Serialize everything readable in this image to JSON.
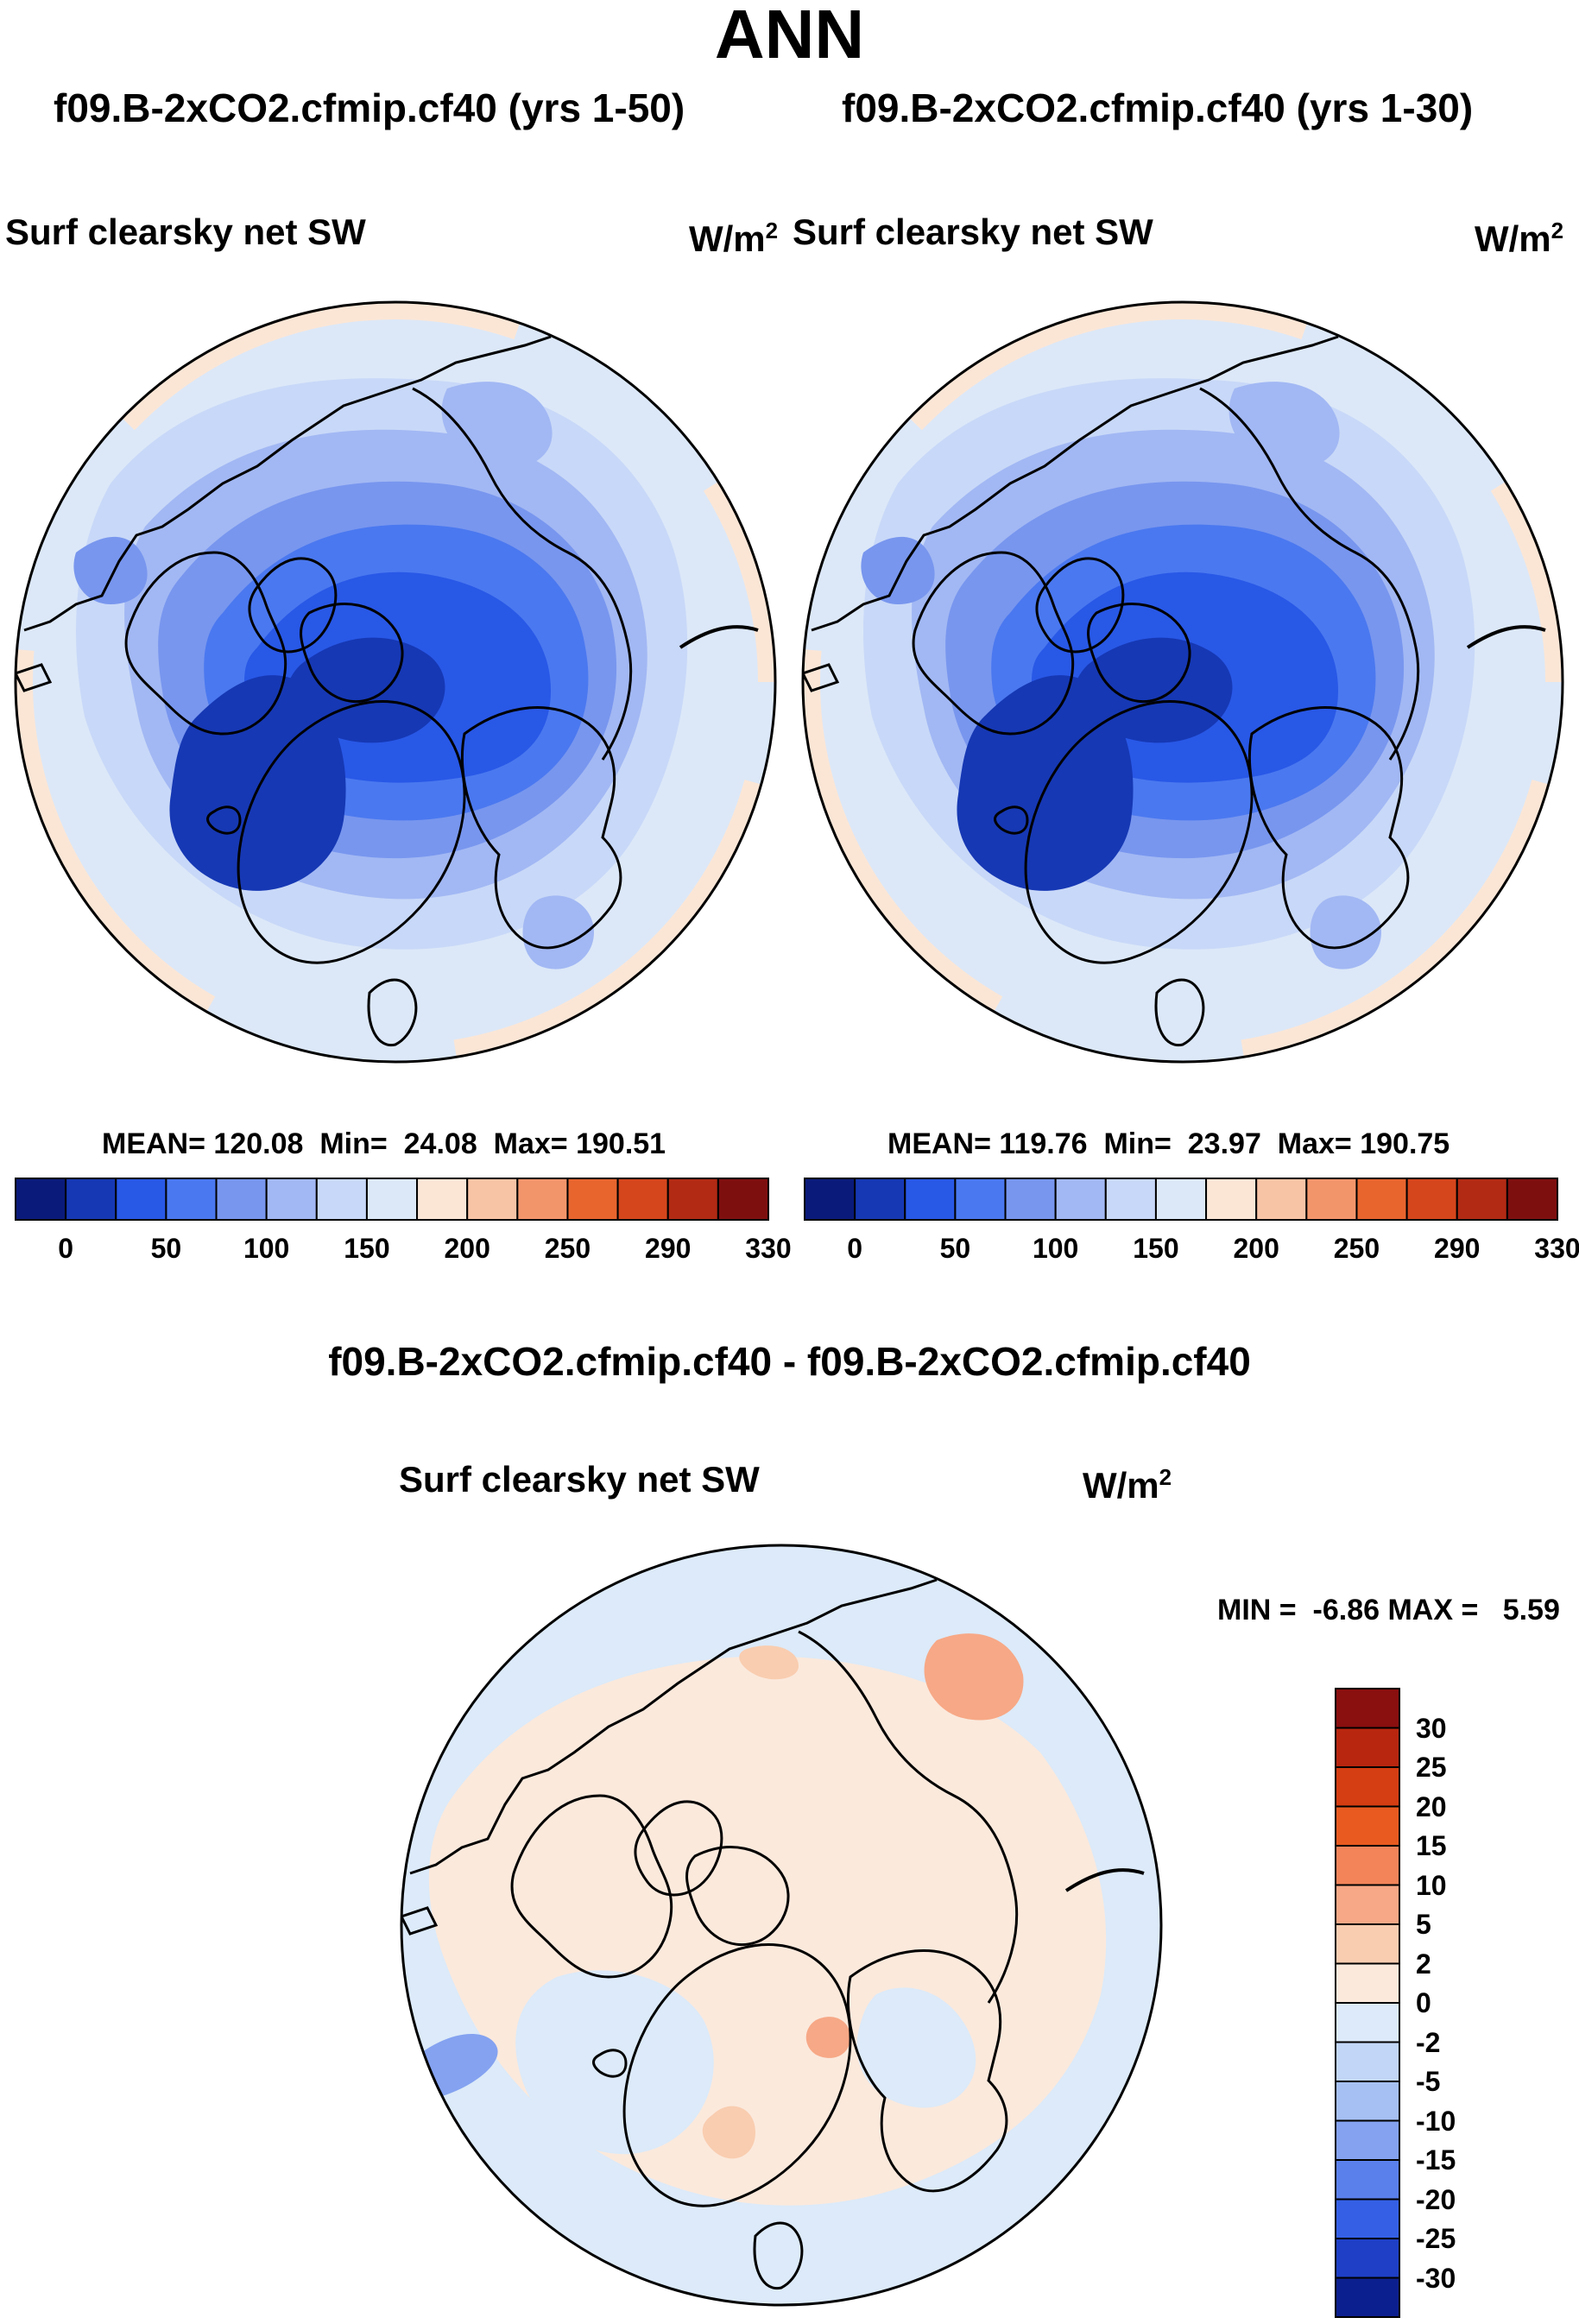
{
  "figure": {
    "title": "ANN",
    "diff_title": "f09.B-2xCO2.cfmip.cf40 - f09.B-2xCO2.cfmip.cf40"
  },
  "panels": [
    {
      "case": "f09.B-2xCO2.cfmip.cf40 (yrs 1-50)",
      "variable": "Surf clearsky net SW",
      "unit": "W/m",
      "unit_exp": "2",
      "mean_label": "MEAN=",
      "mean": "120.08",
      "min_label": "Min=",
      "min": "24.08",
      "max_label": "Max=",
      "max": "190.51"
    },
    {
      "case": "f09.B-2xCO2.cfmip.cf40 (yrs 1-30)",
      "variable": "Surf clearsky net SW",
      "unit": "W/m",
      "unit_exp": "2",
      "mean_label": "MEAN=",
      "mean": "119.76",
      "min_label": "Min=",
      "min": "23.97",
      "max_label": "Max=",
      "max": "190.75"
    }
  ],
  "diff_panel": {
    "variable": "Surf clearsky net SW",
    "unit": "W/m",
    "unit_exp": "2",
    "min_label": "MIN =",
    "min": "-6.86",
    "max_label": "MAX =",
    "max": "5.59"
  },
  "colorbar_main": {
    "colors": [
      "#0a1a7a",
      "#1638b4",
      "#2858e6",
      "#4a78f0",
      "#7896ee",
      "#a2b8f4",
      "#c8d8f8",
      "#dce8f8",
      "#fbe6d6",
      "#f8c4a6",
      "#f3956b",
      "#e8652e",
      "#d5461c",
      "#b22a14",
      "#7e0f0f"
    ],
    "tick_labels": [
      "0",
      "50",
      "100",
      "150",
      "200",
      "250",
      "290",
      "330"
    ]
  },
  "colorbar_diff": {
    "colors_top_to_bottom": [
      "#8a0f0f",
      "#b8260f",
      "#d53d12",
      "#e85a20",
      "#f3845a",
      "#f7a886",
      "#f9cdb0",
      "#fbe9dc",
      "#dceaf9",
      "#c2d6f7",
      "#a6c0f4",
      "#84a2f0",
      "#5a80ec",
      "#3560e6",
      "#1e3fc6",
      "#0c1f8e"
    ],
    "tick_labels": [
      "30",
      "25",
      "20",
      "15",
      "10",
      "5",
      "2",
      "0",
      "-2",
      "-5",
      "-10",
      "-15",
      "-20",
      "-25",
      "-30"
    ]
  }
}
